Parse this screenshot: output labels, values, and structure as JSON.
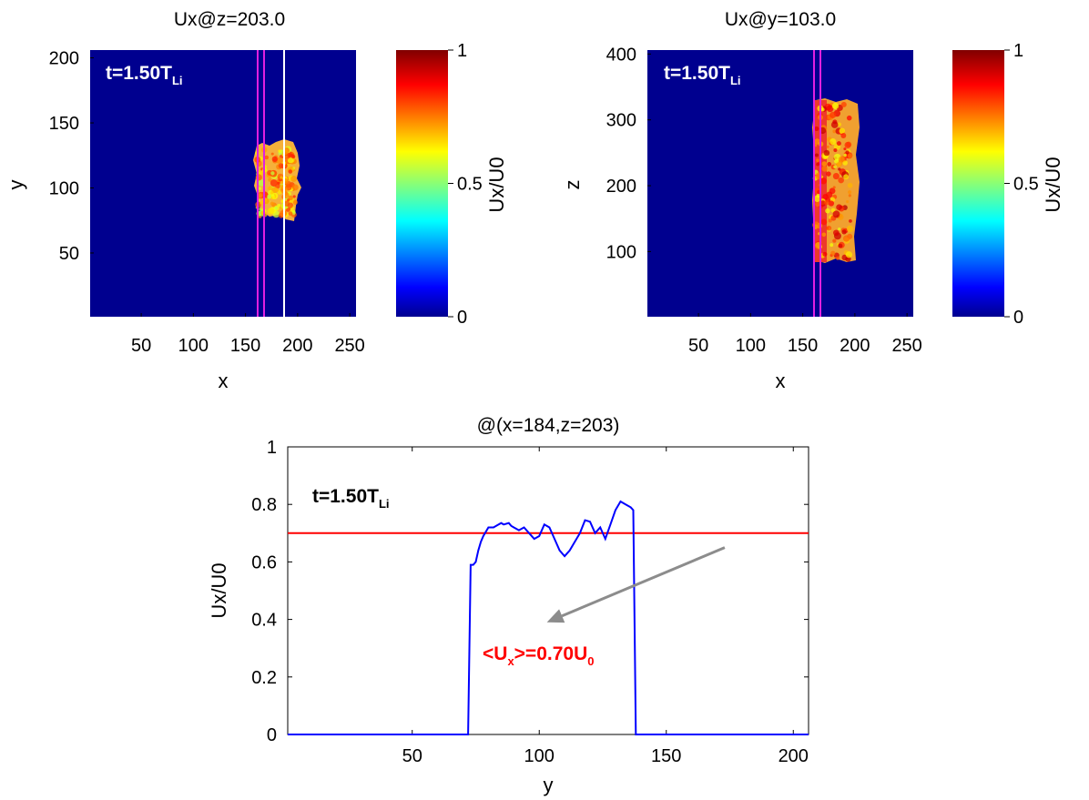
{
  "chart_data": [
    {
      "type": "heatmap",
      "title": "Ux@z=203.0",
      "xlabel": "x",
      "ylabel": "y",
      "xlim": [
        1,
        256
      ],
      "ylim": [
        1,
        206
      ],
      "xticks": [
        50,
        100,
        150,
        200,
        250
      ],
      "yticks": [
        50,
        100,
        150,
        200
      ],
      "annotation": {
        "prefix": "t=1.50T",
        "sub": "Li"
      },
      "colorbar": {
        "label": "Ux/U0",
        "range": [
          0,
          1
        ],
        "ticks": [
          0,
          0.5,
          1
        ],
        "colormap": "jet"
      },
      "background_value": 0,
      "blob": {
        "value_range": [
          0.55,
          0.85
        ],
        "region_x": [
          157,
          202
        ],
        "region_y": [
          74,
          135
        ]
      },
      "vlines": [
        {
          "x": 159,
          "color": "#e020e0"
        },
        {
          "x": 165,
          "color": "#e020e0"
        },
        {
          "x": 184,
          "color": "#ffffff"
        }
      ]
    },
    {
      "type": "heatmap",
      "title": "Ux@y=103.0",
      "xlabel": "x",
      "ylabel": "z",
      "xlim": [
        1,
        256
      ],
      "ylim": [
        1,
        406
      ],
      "xticks": [
        50,
        100,
        150,
        200,
        250
      ],
      "yticks": [
        100,
        200,
        300,
        400
      ],
      "annotation": {
        "prefix": "t=1.50T",
        "sub": "Li"
      },
      "colorbar": {
        "label": "Ux/U0",
        "range": [
          0,
          1
        ],
        "ticks": [
          0,
          0.5,
          1
        ],
        "colormap": "jet"
      },
      "background_value": 0,
      "blob": {
        "value_range": [
          0.6,
          0.95
        ],
        "region_x": [
          158,
          200
        ],
        "region_y": [
          82,
          330
        ]
      },
      "vlines": [
        {
          "x": 161,
          "color": "#e020e0"
        },
        {
          "x": 167,
          "color": "#e020e0"
        }
      ]
    },
    {
      "type": "line",
      "title": "@(x=184,z=203)",
      "xlabel": "y",
      "ylabel": "Ux/U0",
      "xlim": [
        1,
        206
      ],
      "ylim": [
        0,
        1
      ],
      "xticks": [
        50,
        100,
        150,
        200
      ],
      "yticks": [
        0,
        0.2,
        0.4,
        0.6,
        0.8,
        1
      ],
      "ytick_labels": [
        "0",
        "0.2",
        "0.4",
        "0.6",
        "0.8",
        "1"
      ],
      "annotation": {
        "prefix": "t=1.50T",
        "sub": "Li"
      },
      "mean_line": {
        "y": 0.7,
        "color": "#ff0000"
      },
      "mean_label": {
        "parts": [
          "<U",
          "x",
          ">=0.70U",
          "0"
        ],
        "color": "#ff0000"
      },
      "arrow": {
        "from": [
          173,
          0.65
        ],
        "to": [
          103,
          0.39
        ],
        "color": "#8c8c8c"
      },
      "series": [
        {
          "color": "#0000ff",
          "x": [
            1,
            72,
            73,
            74,
            75,
            76,
            77,
            78,
            80,
            82,
            84,
            85,
            86,
            88,
            89,
            90,
            92,
            94,
            96,
            98,
            100,
            102,
            104,
            106,
            108,
            110,
            112,
            114,
            116,
            118,
            120,
            122,
            124,
            126,
            128,
            130,
            132,
            134,
            136,
            137,
            138,
            206
          ],
          "y": [
            0,
            0,
            0.59,
            0.59,
            0.6,
            0.64,
            0.67,
            0.69,
            0.72,
            0.72,
            0.73,
            0.735,
            0.73,
            0.735,
            0.725,
            0.72,
            0.71,
            0.72,
            0.7,
            0.68,
            0.69,
            0.73,
            0.72,
            0.68,
            0.64,
            0.62,
            0.64,
            0.67,
            0.7,
            0.745,
            0.74,
            0.7,
            0.72,
            0.68,
            0.73,
            0.78,
            0.81,
            0.8,
            0.79,
            0.78,
            0,
            0
          ]
        }
      ]
    }
  ]
}
